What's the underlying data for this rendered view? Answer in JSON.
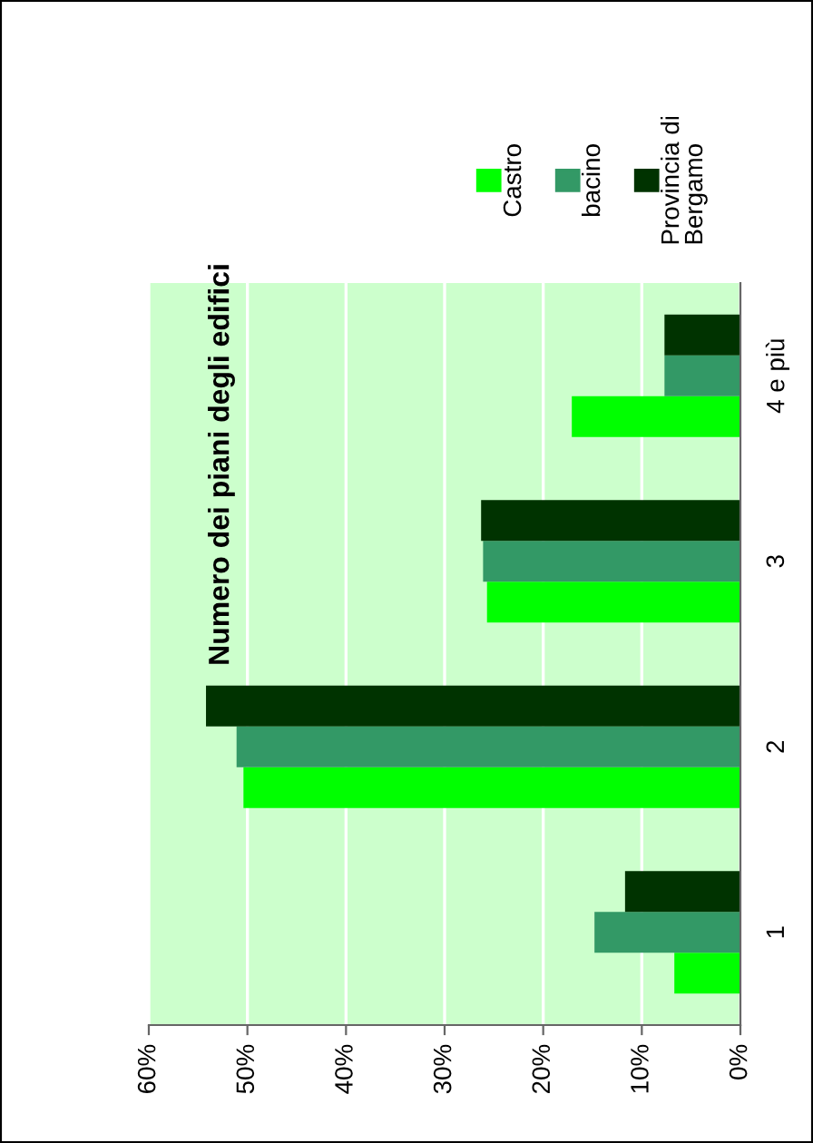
{
  "chart_data": {
    "type": "bar",
    "orientation": "horizontal",
    "title": "Numero dei piani degli edifici",
    "categories": [
      "4 e più",
      "3",
      "2",
      "1"
    ],
    "series": [
      {
        "name": "Castro",
        "color": "#00ff00",
        "values": [
          17.1,
          25.7,
          50.4,
          6.7
        ]
      },
      {
        "name": "bacino",
        "color": "#339966",
        "values": [
          7.7,
          26.1,
          51.1,
          14.8
        ]
      },
      {
        "name": "Provincia di\nBergamo",
        "color": "#003300",
        "values": [
          7.7,
          26.3,
          54.2,
          11.7
        ]
      }
    ],
    "xlim": [
      60,
      0
    ],
    "xticks": [
      {
        "value": 60,
        "label": "60%"
      },
      {
        "value": 50,
        "label": "50%"
      },
      {
        "value": 40,
        "label": "40%"
      },
      {
        "value": 30,
        "label": "30%"
      },
      {
        "value": 20,
        "label": "20%"
      },
      {
        "value": 10,
        "label": "10%"
      },
      {
        "value": 0,
        "label": "0%"
      }
    ],
    "grid": "x",
    "legend": "top"
  }
}
